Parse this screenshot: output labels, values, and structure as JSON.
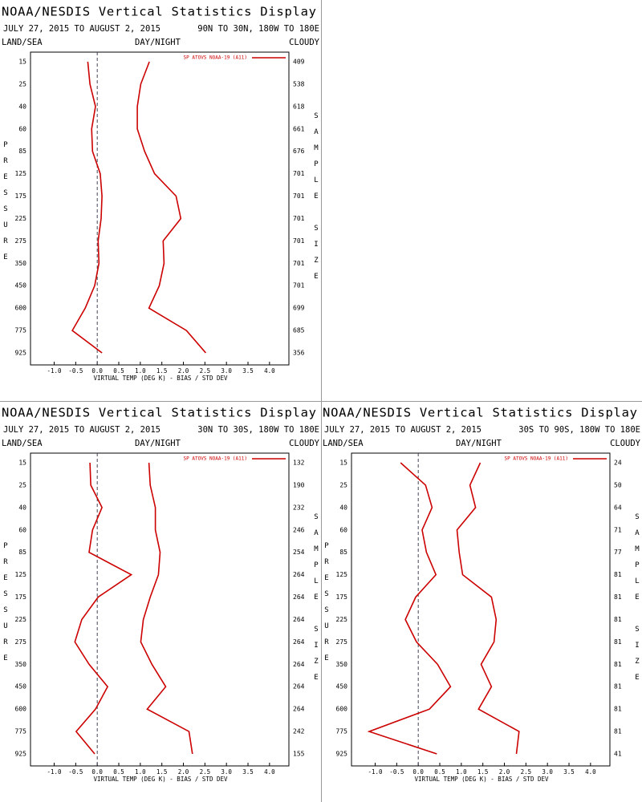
{
  "chart_data": [
    {
      "type": "line",
      "title": "NOAA/NESDIS Vertical Statistics Display",
      "date_range": "JULY 27, 2015 TO AUGUST 2, 2015",
      "region": "90N TO 30N, 180W TO 180E",
      "land_sea": "LAND/SEA",
      "day_night": "DAY/NIGHT",
      "cloudy": "CLOUDY",
      "legend": "SP ATOVS NOAA-19 (A11)",
      "y_label": "PRESSURE",
      "y2_label": "SAMPLE SIZE",
      "x_label": "VIRTUAL TEMP (DEG K) - BIAS / STD DEV",
      "categories": [
        "15",
        "25",
        "40",
        "60",
        "85",
        "125",
        "175",
        "225",
        "275",
        "350",
        "450",
        "600",
        "775",
        "925"
      ],
      "sample_size": [
        "409",
        "538",
        "618",
        "661",
        "676",
        "701",
        "701",
        "701",
        "701",
        "701",
        "701",
        "699",
        "685",
        "356"
      ],
      "bias": {
        "color": "#cc0000",
        "values": [
          -0.22,
          -0.17,
          -0.04,
          -0.13,
          -0.11,
          0.07,
          0.11,
          0.09,
          0.02,
          0.04,
          -0.06,
          -0.28,
          -0.58,
          0.11
        ]
      },
      "std_dev": {
        "color": "#cc0000",
        "values": [
          1.21,
          1.01,
          0.93,
          0.93,
          1.1,
          1.33,
          1.83,
          1.94,
          1.53,
          1.55,
          1.44,
          1.2,
          2.07,
          2.52
        ]
      },
      "xlim": [
        -1.55,
        4.45
      ],
      "xticks": [
        {
          "value": -1,
          "label": "-1.0"
        },
        -0.5,
        {
          "value": 0,
          "label": "0.0"
        },
        0.5,
        {
          "value": 1,
          "label": "1.0"
        },
        1.5,
        {
          "value": 2,
          "label": "2.0"
        },
        2.5,
        {
          "value": 3,
          "label": "3.0"
        },
        3.5,
        {
          "value": 4,
          "label": "4.0"
        }
      ],
      "zero_line": true
    },
    {
      "type": "line",
      "title": "NOAA/NESDIS Vertical Statistics Display",
      "date_range": "JULY 27, 2015 TO AUGUST 2, 2015",
      "region": "30N TO 30S, 180W TO 180E",
      "land_sea": "LAND/SEA",
      "day_night": "DAY/NIGHT",
      "cloudy": "CLOUDY",
      "legend": "SP ATOVS NOAA-19 (A11)",
      "y_label": "PRESSURE",
      "y2_label": "SAMPLE SIZE",
      "x_label": "VIRTUAL TEMP (DEG K) - BIAS / STD DEV",
      "categories": [
        "15",
        "25",
        "40",
        "60",
        "85",
        "125",
        "175",
        "225",
        "275",
        "350",
        "450",
        "600",
        "775",
        "925"
      ],
      "sample_size": [
        "132",
        "190",
        "232",
        "246",
        "254",
        "264",
        "264",
        "264",
        "264",
        "264",
        "264",
        "264",
        "242",
        "155"
      ],
      "bias": {
        "color": "#cc0000",
        "values": [
          -0.17,
          -0.15,
          0.11,
          -0.11,
          -0.19,
          0.79,
          0.02,
          -0.36,
          -0.52,
          -0.19,
          0.24,
          -0.04,
          -0.49,
          -0.06
        ]
      },
      "std_dev": {
        "color": "#cc0000",
        "values": [
          1.2,
          1.23,
          1.35,
          1.35,
          1.46,
          1.42,
          1.23,
          1.07,
          1.01,
          1.27,
          1.59,
          1.16,
          2.13,
          2.21
        ]
      },
      "xlim": [
        -1.55,
        4.45
      ],
      "xticks": [
        {
          "value": -1,
          "label": "-1.0"
        },
        -0.5,
        {
          "value": 0,
          "label": "0.0"
        },
        0.5,
        {
          "value": 1,
          "label": "1.0"
        },
        1.5,
        {
          "value": 2,
          "label": "2.0"
        },
        2.5,
        {
          "value": 3,
          "label": "3.0"
        },
        3.5,
        {
          "value": 4,
          "label": "4.0"
        }
      ],
      "zero_line": true
    },
    {
      "type": "line",
      "title": "NOAA/NESDIS Vertical Statistics Display",
      "date_range": "JULY 27, 2015 TO AUGUST 2, 2015",
      "region": "30S TO 90S, 180W TO 180E",
      "land_sea": "LAND/SEA",
      "day_night": "DAY/NIGHT",
      "cloudy": "CLOUDY",
      "legend": "SP ATOVS NOAA-19 (A11)",
      "y_label": "PRESSURE",
      "y2_label": "SAMPLE SIZE",
      "x_label": "VIRTUAL TEMP (DEG K) - BIAS / STD DEV",
      "categories": [
        "15",
        "25",
        "40",
        "60",
        "85",
        "125",
        "175",
        "225",
        "275",
        "350",
        "450",
        "600",
        "775",
        "925"
      ],
      "sample_size": [
        "24",
        "50",
        "64",
        "71",
        "77",
        "81",
        "81",
        "81",
        "81",
        "81",
        "81",
        "81",
        "81",
        "41"
      ],
      "bias": {
        "color": "#cc0000",
        "values": [
          -0.41,
          0.17,
          0.32,
          0.09,
          0.19,
          0.41,
          -0.06,
          -0.3,
          -0.04,
          0.45,
          0.75,
          0.26,
          -1.14,
          0.43
        ]
      },
      "std_dev": {
        "color": "#cc0000",
        "values": [
          1.44,
          1.2,
          1.33,
          0.9,
          0.95,
          1.03,
          1.7,
          1.81,
          1.76,
          1.46,
          1.7,
          1.4,
          2.34,
          2.28
        ]
      },
      "xlim": [
        -1.55,
        4.45
      ],
      "xticks": [
        {
          "value": -1,
          "label": "-1.0"
        },
        -0.5,
        {
          "value": 0,
          "label": "0.0"
        },
        0.5,
        {
          "value": 1,
          "label": "1.0"
        },
        1.5,
        {
          "value": 2,
          "label": "2.0"
        },
        2.5,
        {
          "value": 3,
          "label": "3.0"
        },
        3.5,
        {
          "value": 4,
          "label": "4.0"
        }
      ],
      "zero_line": true
    }
  ]
}
